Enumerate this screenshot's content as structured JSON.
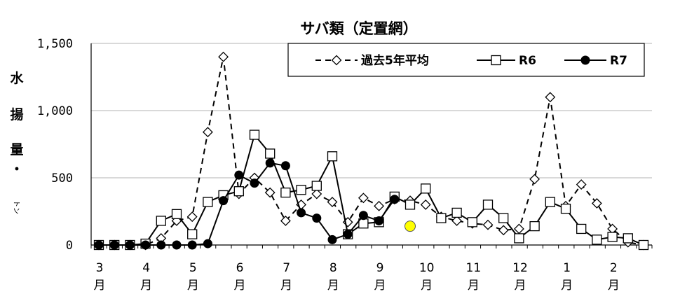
{
  "chart_data": {
    "type": "line",
    "title": "サバ類（定置網）",
    "ylabel": [
      "水",
      "揚",
      "量",
      "・",
      "トン"
    ],
    "ylim": [
      0,
      1500
    ],
    "yticks": [
      "0",
      "500",
      "1,000",
      "1,500"
    ],
    "x_month_labels": [
      {
        "num": "3",
        "unit": "月"
      },
      {
        "num": "4",
        "unit": "月"
      },
      {
        "num": "5",
        "unit": "月"
      },
      {
        "num": "6",
        "unit": "月"
      },
      {
        "num": "7",
        "unit": "月"
      },
      {
        "num": "8",
        "unit": "月"
      },
      {
        "num": "9",
        "unit": "月"
      },
      {
        "num": "10",
        "unit": "月"
      },
      {
        "num": "11",
        "unit": "月"
      },
      {
        "num": "12",
        "unit": "月"
      },
      {
        "num": "1",
        "unit": "月"
      },
      {
        "num": "2",
        "unit": "月"
      }
    ],
    "periods_per_month": 3,
    "grid": true,
    "legend_position": "top-right",
    "series": [
      {
        "name": "過去5年平均",
        "style": "dashed-diamond",
        "color": "#000000",
        "values": [
          0,
          0,
          0,
          0,
          50,
          180,
          210,
          840,
          1400,
          380,
          500,
          390,
          180,
          300,
          380,
          320,
          170,
          350,
          290,
          340,
          330,
          300,
          210,
          180,
          160,
          150,
          110,
          120,
          490,
          1100,
          290,
          450,
          310,
          120,
          20,
          0
        ]
      },
      {
        "name": "R6",
        "style": "solid-square",
        "color": "#000000",
        "values": [
          0,
          0,
          0,
          10,
          180,
          230,
          80,
          320,
          370,
          400,
          820,
          680,
          390,
          410,
          440,
          660,
          80,
          160,
          170,
          360,
          300,
          420,
          200,
          240,
          170,
          300,
          200,
          50,
          140,
          320,
          270,
          120,
          40,
          60,
          50,
          0
        ]
      },
      {
        "name": "R7",
        "style": "solid-circle",
        "color": "#000000",
        "values": [
          0,
          0,
          0,
          0,
          0,
          0,
          0,
          10,
          330,
          520,
          460,
          610,
          590,
          240,
          200,
          40,
          80,
          220,
          180,
          340
        ]
      }
    ],
    "highlight_point": {
      "period_index": 20,
      "value": 140,
      "color": "#ffff00"
    }
  }
}
